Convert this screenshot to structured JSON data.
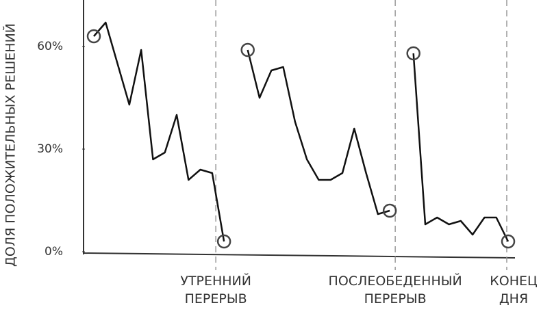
{
  "chart_data": {
    "type": "line",
    "y_label": "ДОЛЯ ПОЛОЖИТЕЛЬНЫХ РЕШЕНИЙ",
    "categories": [
      null,
      null,
      null,
      null,
      null,
      null,
      null,
      null,
      null,
      null,
      null,
      "УТРЕННИЙ ПЕРЕРЫВ",
      null,
      null,
      null,
      null,
      null,
      null,
      null,
      null,
      null,
      null,
      null,
      null,
      null,
      "ПОСЛЕОБЕДЕННЫЙ ПЕРЕРЫВ",
      null,
      null,
      null,
      null,
      null,
      null,
      null,
      null,
      null,
      "КОНЕЦ ДНЯ"
    ],
    "series": [
      {
        "color": "#111111",
        "values": [
          63,
          67,
          55,
          43,
          59,
          27,
          29,
          40,
          21,
          24,
          23,
          3,
          null,
          59,
          45,
          53,
          54,
          38,
          27,
          21,
          21,
          23,
          36,
          23,
          11,
          12,
          null,
          58,
          8,
          10,
          8,
          9,
          5,
          10,
          10,
          3
        ]
      }
    ],
    "ylim": [
      0,
      72
    ],
    "yticks": [
      {
        "value": 0,
        "label": "0%"
      },
      {
        "value": 30,
        "label": "30%"
      },
      {
        "value": 60,
        "label": "60%"
      }
    ],
    "grid": false
  }
}
